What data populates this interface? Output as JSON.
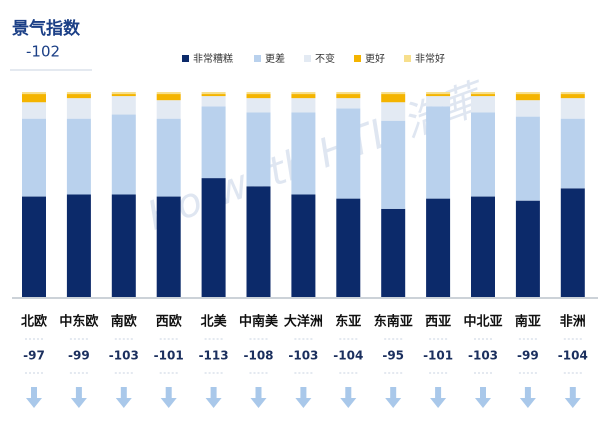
{
  "chart_data": {
    "type": "stacked_bar",
    "title": "景气指数",
    "subtitle": -102,
    "watermark": "Horwath HTL 浩華",
    "categories": [
      "北欧",
      "中东欧",
      "南欧",
      "西欧",
      "北美",
      "中南美",
      "大洋洲",
      "东亚",
      "东南亚",
      "西亚",
      "中北亚",
      "南亚",
      "非洲"
    ],
    "index_values": [
      -97,
      -99,
      -103,
      -101,
      -113,
      -108,
      -103,
      -104,
      -95,
      -101,
      -103,
      -99,
      -104
    ],
    "ylim": [
      0,
      100
    ],
    "series": [
      {
        "name": "非常糟糕",
        "color": "#0c2a6a",
        "values": [
          49,
          50,
          50,
          49,
          58,
          54,
          50,
          48,
          43,
          48,
          49,
          47,
          53
        ]
      },
      {
        "name": "更差",
        "color": "#b9d1ed",
        "values": [
          38,
          37,
          39,
          38,
          35,
          36,
          40,
          44,
          43,
          45,
          41,
          41,
          34
        ]
      },
      {
        "name": "不变",
        "color": "#e3eaf3",
        "values": [
          8,
          10,
          9,
          9,
          5,
          7,
          7,
          5,
          9,
          5,
          8,
          8,
          10
        ]
      },
      {
        "name": "更好",
        "color": "#f4b400",
        "values": [
          4,
          2,
          1,
          3,
          1,
          2,
          2,
          2,
          4,
          1,
          1,
          3,
          2
        ]
      },
      {
        "name": "非常好",
        "color": "#f7df8c",
        "values": [
          1,
          1,
          1,
          1,
          1,
          1,
          1,
          1,
          1,
          1,
          1,
          1,
          1
        ]
      }
    ]
  }
}
